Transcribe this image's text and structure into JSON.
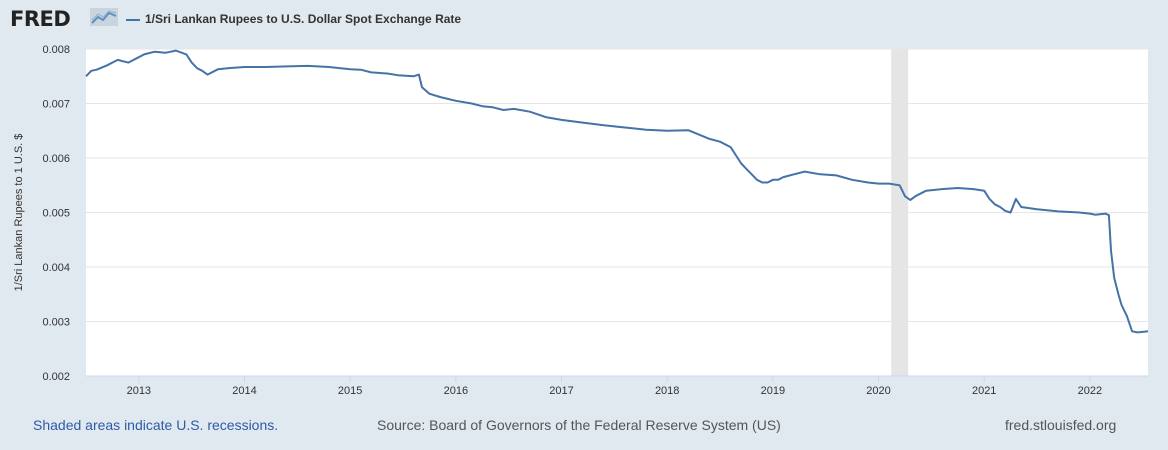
{
  "header": {
    "logo_text": "FRED",
    "legend_label": "1/Sri Lankan Rupees to U.S. Dollar Spot Exchange Rate"
  },
  "colors": {
    "background": "#e1e9f0",
    "plot_background": "#ffffff",
    "series": "#4572a7",
    "recession_shade": "#e5e5e5",
    "grid": "#e6e6e6",
    "footer_link": "#2e5aa8"
  },
  "footer": {
    "recession_note": "Shaded areas indicate U.S. recessions.",
    "source": "Source: Board of Governors of the Federal Reserve System (US)",
    "site": "fred.stlouisfed.org"
  },
  "chart_data": {
    "type": "line",
    "title": "",
    "xlabel": "",
    "ylabel": "1/Sri Lankan Rupees to 1 U.S. $",
    "xlim": [
      2012.5,
      2022.55
    ],
    "ylim": [
      0.002,
      0.008
    ],
    "y_ticks": [
      0.002,
      0.003,
      0.004,
      0.005,
      0.006,
      0.007,
      0.008
    ],
    "y_tick_labels": [
      "0.002",
      "0.003",
      "0.004",
      "0.005",
      "0.006",
      "0.007",
      "0.008"
    ],
    "x_ticks": [
      2013,
      2014,
      2015,
      2016,
      2017,
      2018,
      2019,
      2020,
      2021,
      2022
    ],
    "x_tick_labels": [
      "2013",
      "2014",
      "2015",
      "2016",
      "2017",
      "2018",
      "2019",
      "2020",
      "2021",
      "2022"
    ],
    "grid": "horizontal",
    "recessions": [
      [
        2020.12,
        2020.28
      ]
    ],
    "series": [
      {
        "name": "1/Sri Lankan Rupees to U.S. Dollar Spot Exchange Rate",
        "x": [
          2012.5,
          2012.55,
          2012.6,
          2012.7,
          2012.8,
          2012.9,
          2013.0,
          2013.05,
          2013.15,
          2013.25,
          2013.35,
          2013.45,
          2013.5,
          2013.55,
          2013.6,
          2013.65,
          2013.75,
          2013.85,
          2014.0,
          2014.2,
          2014.4,
          2014.6,
          2014.8,
          2015.0,
          2015.1,
          2015.2,
          2015.35,
          2015.45,
          2015.6,
          2015.65,
          2015.68,
          2015.75,
          2015.85,
          2016.0,
          2016.15,
          2016.25,
          2016.35,
          2016.45,
          2016.55,
          2016.7,
          2016.85,
          2017.0,
          2017.2,
          2017.4,
          2017.6,
          2017.8,
          2018.0,
          2018.2,
          2018.3,
          2018.4,
          2018.5,
          2018.6,
          2018.7,
          2018.75,
          2018.8,
          2018.85,
          2018.9,
          2018.95,
          2019.0,
          2019.05,
          2019.1,
          2019.2,
          2019.3,
          2019.45,
          2019.6,
          2019.75,
          2019.9,
          2020.0,
          2020.1,
          2020.2,
          2020.25,
          2020.3,
          2020.35,
          2020.45,
          2020.6,
          2020.75,
          2020.9,
          2021.0,
          2021.05,
          2021.1,
          2021.15,
          2021.2,
          2021.25,
          2021.3,
          2021.35,
          2021.5,
          2021.7,
          2021.9,
          2022.0,
          2022.05,
          2022.15,
          2022.18,
          2022.2,
          2022.23,
          2022.27,
          2022.3,
          2022.35,
          2022.4,
          2022.45,
          2022.55
        ],
        "values": [
          0.0075,
          0.0076,
          0.00762,
          0.0077,
          0.0078,
          0.00775,
          0.00785,
          0.0079,
          0.00795,
          0.00793,
          0.00797,
          0.0079,
          0.00775,
          0.00765,
          0.0076,
          0.00753,
          0.00763,
          0.00765,
          0.00767,
          0.00767,
          0.00768,
          0.00769,
          0.00767,
          0.00763,
          0.00762,
          0.00757,
          0.00755,
          0.00752,
          0.0075,
          0.00753,
          0.0073,
          0.00718,
          0.00712,
          0.00705,
          0.007,
          0.00695,
          0.00693,
          0.00688,
          0.0069,
          0.00685,
          0.00675,
          0.0067,
          0.00665,
          0.0066,
          0.00656,
          0.00652,
          0.0065,
          0.00651,
          0.00643,
          0.00635,
          0.0063,
          0.0062,
          0.0059,
          0.0058,
          0.0057,
          0.0056,
          0.00555,
          0.00555,
          0.0056,
          0.0056,
          0.00565,
          0.0057,
          0.00575,
          0.0057,
          0.00568,
          0.0056,
          0.00555,
          0.00553,
          0.00553,
          0.0055,
          0.0053,
          0.00523,
          0.0053,
          0.0054,
          0.00543,
          0.00545,
          0.00543,
          0.0054,
          0.00525,
          0.00515,
          0.0051,
          0.00503,
          0.005,
          0.00525,
          0.0051,
          0.00506,
          0.00502,
          0.005,
          0.00498,
          0.00496,
          0.00498,
          0.00495,
          0.0043,
          0.0038,
          0.0035,
          0.0033,
          0.0031,
          0.00282,
          0.0028,
          0.00282
        ]
      }
    ]
  }
}
